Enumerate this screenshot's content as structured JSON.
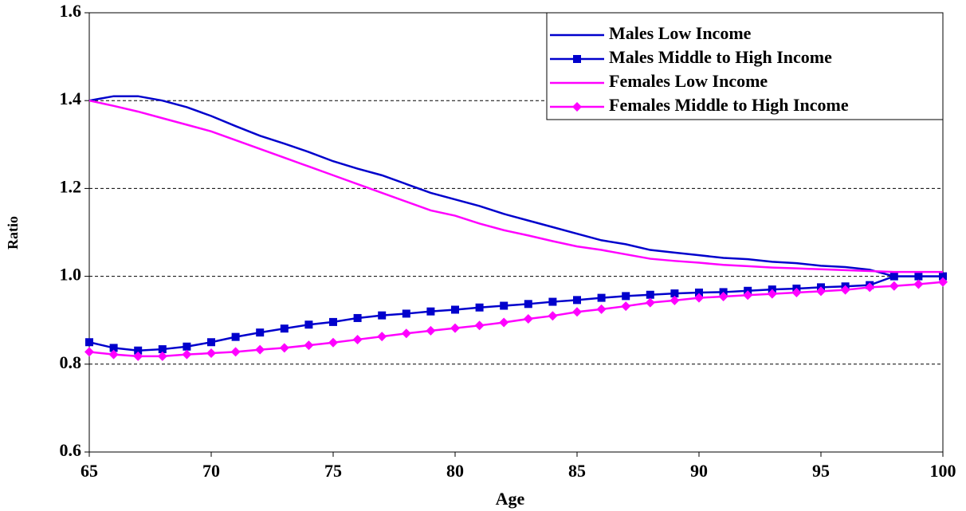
{
  "chart_data": {
    "type": "line",
    "x_label": "Age",
    "y_label": "Ratio",
    "x": [
      65,
      66,
      67,
      68,
      69,
      70,
      71,
      72,
      73,
      74,
      75,
      76,
      77,
      78,
      79,
      80,
      81,
      82,
      83,
      84,
      85,
      86,
      87,
      88,
      89,
      90,
      91,
      92,
      93,
      94,
      95,
      96,
      97,
      98,
      99,
      100
    ],
    "series": [
      {
        "name": "Males Low Income",
        "color": "#0000cc",
        "marker": "none",
        "values": [
          1.4,
          1.41,
          1.41,
          1.4,
          1.385,
          1.365,
          1.342,
          1.32,
          1.302,
          1.283,
          1.262,
          1.245,
          1.23,
          1.21,
          1.19,
          1.175,
          1.16,
          1.142,
          1.127,
          1.112,
          1.097,
          1.082,
          1.073,
          1.06,
          1.054,
          1.048,
          1.042,
          1.039,
          1.033,
          1.03,
          1.024,
          1.021,
          1.015,
          1.0,
          1.0,
          1.0
        ]
      },
      {
        "name": "Males Middle to High Income",
        "color": "#0000cc",
        "marker": "square",
        "values": [
          0.85,
          0.837,
          0.831,
          0.834,
          0.84,
          0.85,
          0.862,
          0.872,
          0.881,
          0.89,
          0.896,
          0.905,
          0.911,
          0.915,
          0.92,
          0.924,
          0.929,
          0.933,
          0.937,
          0.942,
          0.946,
          0.951,
          0.955,
          0.958,
          0.961,
          0.963,
          0.964,
          0.967,
          0.97,
          0.972,
          0.975,
          0.977,
          0.98,
          1.0,
          1.0,
          1.0
        ]
      },
      {
        "name": "Females Low Income",
        "color": "#ff00ff",
        "marker": "none",
        "values": [
          1.4,
          1.388,
          1.375,
          1.36,
          1.345,
          1.33,
          1.31,
          1.29,
          1.27,
          1.25,
          1.23,
          1.21,
          1.19,
          1.17,
          1.15,
          1.138,
          1.12,
          1.105,
          1.093,
          1.08,
          1.068,
          1.06,
          1.05,
          1.04,
          1.035,
          1.031,
          1.026,
          1.023,
          1.02,
          1.018,
          1.016,
          1.014,
          1.012,
          1.01,
          1.01,
          1.01
        ]
      },
      {
        "name": "Females Middle to High Income",
        "color": "#ff00ff",
        "marker": "diamond",
        "values": [
          0.828,
          0.822,
          0.818,
          0.818,
          0.822,
          0.825,
          0.828,
          0.833,
          0.837,
          0.843,
          0.849,
          0.856,
          0.863,
          0.87,
          0.876,
          0.882,
          0.888,
          0.895,
          0.903,
          0.91,
          0.919,
          0.925,
          0.932,
          0.94,
          0.945,
          0.951,
          0.954,
          0.957,
          0.96,
          0.963,
          0.966,
          0.969,
          0.975,
          0.978,
          0.982,
          0.987
        ]
      }
    ],
    "xlim": [
      65,
      100
    ],
    "xticks": [
      65,
      70,
      75,
      80,
      85,
      90,
      95,
      100
    ],
    "ylim": [
      0.6,
      1.6
    ],
    "yticks": [
      0.6,
      0.8,
      {
        "value": 1,
        "label": "1.0"
      },
      1.2,
      1.4,
      1.6
    ],
    "grid": true,
    "legend": "top-right"
  }
}
